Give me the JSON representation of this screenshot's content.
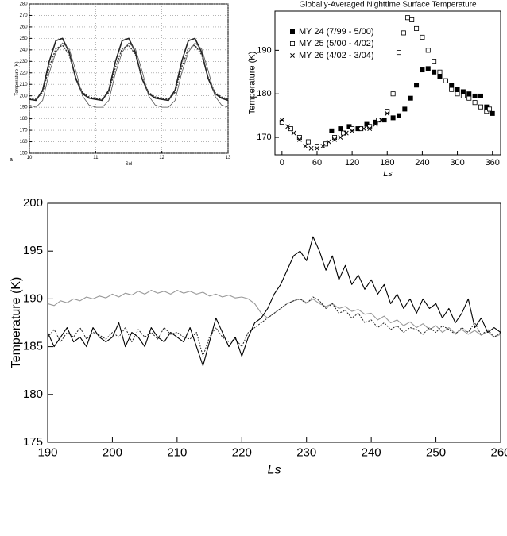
{
  "chart_data": [
    {
      "type": "line",
      "xlabel": "Sol",
      "ylabel": "Temperature (K)",
      "panel_label": "a",
      "xlim": [
        10,
        13
      ],
      "xticks": [
        10,
        11,
        12,
        13
      ],
      "ylim": [
        150,
        280
      ],
      "yticks": [
        150,
        160,
        170,
        180,
        190,
        200,
        210,
        220,
        230,
        240,
        250,
        260,
        270,
        280
      ],
      "grid": true,
      "x": [
        10,
        10.1,
        10.2,
        10.3,
        10.4,
        10.5,
        10.6,
        10.7,
        10.8,
        10.9,
        11,
        11.1,
        11.2,
        11.3,
        11.4,
        11.5,
        11.6,
        11.7,
        11.8,
        11.9,
        12,
        12.1,
        12.2,
        12.3,
        12.4,
        12.5,
        12.6,
        12.7,
        12.8,
        12.9,
        13
      ],
      "series": [
        {
          "color": "#222222",
          "linewidth": 1.6,
          "style": "solid",
          "values": [
            197,
            196,
            205,
            230,
            248,
            250,
            238,
            215,
            202,
            198,
            197,
            196,
            205,
            230,
            248,
            250,
            238,
            215,
            202,
            198,
            197,
            196,
            205,
            230,
            248,
            250,
            238,
            215,
            202,
            198,
            196
          ]
        },
        {
          "color": "#333333",
          "linewidth": 1.4,
          "style": "dotted",
          "values": [
            198,
            197,
            203,
            225,
            241,
            244,
            236,
            216,
            203,
            199,
            198,
            197,
            203,
            225,
            241,
            244,
            236,
            216,
            203,
            199,
            198,
            197,
            203,
            225,
            241,
            244,
            236,
            216,
            203,
            199,
            197
          ]
        },
        {
          "color": "#555555",
          "linewidth": 0.8,
          "style": "solid",
          "values": [
            192,
            190,
            196,
            220,
            238,
            246,
            241,
            222,
            200,
            192,
            190,
            190,
            196,
            220,
            238,
            246,
            241,
            222,
            200,
            192,
            190,
            190,
            196,
            220,
            238,
            246,
            241,
            222,
            200,
            192,
            190
          ]
        }
      ]
    },
    {
      "type": "scatter",
      "title": "Globally-Averaged Nighttime Surface Temperature",
      "xlabel": "Ls",
      "ylabel": "Temperature (K)",
      "xlim": [
        -12,
        374
      ],
      "xticks": [
        0,
        60,
        120,
        180,
        240,
        300,
        360
      ],
      "ylim": [
        166,
        199
      ],
      "yticks": [
        170,
        180,
        190
      ],
      "grid": false,
      "legend": "upper left",
      "series": [
        {
          "name": "MY 24 (7/99 - 5/00)",
          "color": "#000000",
          "marker": "filled-square",
          "x": [
            85,
            100,
            115,
            130,
            145,
            160,
            175,
            190,
            200,
            210,
            220,
            230,
            240,
            250,
            260,
            270,
            280,
            290,
            300,
            310,
            320,
            330,
            340,
            350,
            360
          ],
          "values": [
            171.5,
            172,
            172.5,
            172,
            173,
            173.5,
            174,
            174.5,
            175,
            176.5,
            179,
            182,
            185.5,
            185.8,
            185,
            184,
            183,
            182,
            181,
            180.5,
            180,
            179.5,
            179.5,
            177,
            175.5
          ]
        },
        {
          "name": "MY 25 (5/00 - 4/02)",
          "color": "#000000",
          "marker": "open-square",
          "x": [
            0,
            15,
            30,
            45,
            60,
            75,
            90,
            105,
            120,
            135,
            150,
            165,
            180,
            190,
            200,
            208,
            215,
            222,
            230,
            240,
            250,
            260,
            270,
            280,
            290,
            300,
            310,
            320,
            330,
            340,
            350,
            355
          ],
          "values": [
            173.5,
            172,
            170,
            169,
            168,
            168.5,
            170,
            171,
            172,
            172,
            172.5,
            174,
            176,
            180,
            189.5,
            194,
            197.5,
            197,
            195,
            193,
            190,
            187.5,
            185,
            183,
            181,
            180,
            179.5,
            179,
            178,
            177,
            176,
            176.5
          ]
        },
        {
          "name": "MY 26 (4/02 - 3/04)",
          "color": "#000000",
          "marker": "x",
          "x": [
            0,
            10,
            20,
            30,
            40,
            50,
            60,
            70,
            80,
            90,
            100,
            110,
            120,
            130,
            140,
            150,
            160,
            170,
            180
          ],
          "values": [
            174,
            172.5,
            171,
            169.5,
            168,
            167.5,
            167.5,
            168,
            169,
            169.5,
            170,
            171,
            171.5,
            172,
            172,
            172,
            173,
            174,
            175.5
          ]
        }
      ]
    },
    {
      "type": "line",
      "xlabel": "Ls",
      "ylabel": "Temperature (K)",
      "xlim": [
        190,
        260
      ],
      "xticks": [
        190,
        200,
        210,
        220,
        230,
        240,
        250,
        260
      ],
      "ylim": [
        175,
        200
      ],
      "yticks": [
        175,
        180,
        185,
        190,
        195,
        200
      ],
      "grid": false,
      "x": [
        190,
        191,
        192,
        193,
        194,
        195,
        196,
        197,
        198,
        199,
        200,
        201,
        202,
        203,
        204,
        205,
        206,
        207,
        208,
        209,
        210,
        211,
        212,
        213,
        214,
        215,
        216,
        217,
        218,
        219,
        220,
        221,
        222,
        223,
        224,
        225,
        226,
        227,
        228,
        229,
        230,
        231,
        232,
        233,
        234,
        235,
        236,
        237,
        238,
        239,
        240,
        241,
        242,
        243,
        244,
        245,
        246,
        247,
        248,
        249,
        250,
        251,
        252,
        253,
        254,
        255,
        256,
        257,
        258,
        259,
        260
      ],
      "series": [
        {
          "color": "#999999",
          "linewidth": 1.1,
          "style": "solid",
          "values": [
            189.5,
            189.3,
            189.8,
            189.6,
            190,
            189.8,
            190.2,
            190,
            190.3,
            190.1,
            190.5,
            190.2,
            190.6,
            190.4,
            190.8,
            190.5,
            190.9,
            190.6,
            190.8,
            190.5,
            190.9,
            190.6,
            190.8,
            190.5,
            190.7,
            190.3,
            190.5,
            190.2,
            190.4,
            190.1,
            190.2,
            190,
            189.5,
            188.5,
            188,
            188.5,
            189,
            189.5,
            189.8,
            190,
            189.6,
            190,
            189.5,
            189.2,
            189.5,
            189,
            189.2,
            188.7,
            188.9,
            188.4,
            188.5,
            187.8,
            188.2,
            187.5,
            187.8,
            187.2,
            187.6,
            187,
            187.4,
            186.8,
            187.2,
            186.5,
            187,
            186.4,
            186.8,
            186.3,
            186.7,
            186.2,
            186.6,
            186,
            186.3
          ]
        },
        {
          "color": "#222222",
          "linewidth": 1,
          "style": "dotted",
          "values": [
            186,
            186.8,
            185.5,
            186.5,
            186,
            187,
            185.8,
            186.5,
            186.2,
            185.8,
            186.5,
            186,
            187,
            185.5,
            186.8,
            186,
            186.5,
            185.8,
            187,
            186.3,
            186.5,
            186,
            185.8,
            186.5,
            184,
            186,
            187,
            186,
            185.5,
            185.8,
            185,
            186.5,
            187,
            187.5,
            188,
            188.5,
            189,
            189.5,
            189.8,
            190,
            189.5,
            190.2,
            189.8,
            189,
            189.5,
            188.5,
            188.8,
            188,
            188.5,
            187.5,
            187.8,
            187,
            187.5,
            186.8,
            187.2,
            186.5,
            187,
            186.8,
            186.3,
            187,
            186.5,
            187.2,
            186.8,
            186.3,
            187,
            186.5,
            187.5,
            186.2,
            186.8,
            186,
            186.5
          ]
        },
        {
          "color": "#000000",
          "linewidth": 1.1,
          "style": "solid",
          "values": [
            186.5,
            185,
            186,
            187,
            185.5,
            186,
            185,
            187,
            186,
            185.5,
            186,
            187.5,
            185,
            186.5,
            186,
            185,
            187,
            186,
            185.5,
            186.5,
            186,
            185.5,
            187,
            185,
            183,
            185.5,
            188,
            186.5,
            185,
            186,
            184,
            186,
            187.5,
            188,
            189,
            190.5,
            191.5,
            193,
            194.5,
            195,
            194,
            196.5,
            195,
            193,
            194.5,
            192,
            193.5,
            191.5,
            192.5,
            191,
            192,
            190.5,
            191.5,
            189.5,
            190.5,
            189,
            190,
            188.5,
            190,
            189,
            189.5,
            188,
            189,
            187.5,
            188.5,
            190,
            187,
            188,
            186.5,
            187,
            186.5
          ]
        }
      ]
    }
  ]
}
